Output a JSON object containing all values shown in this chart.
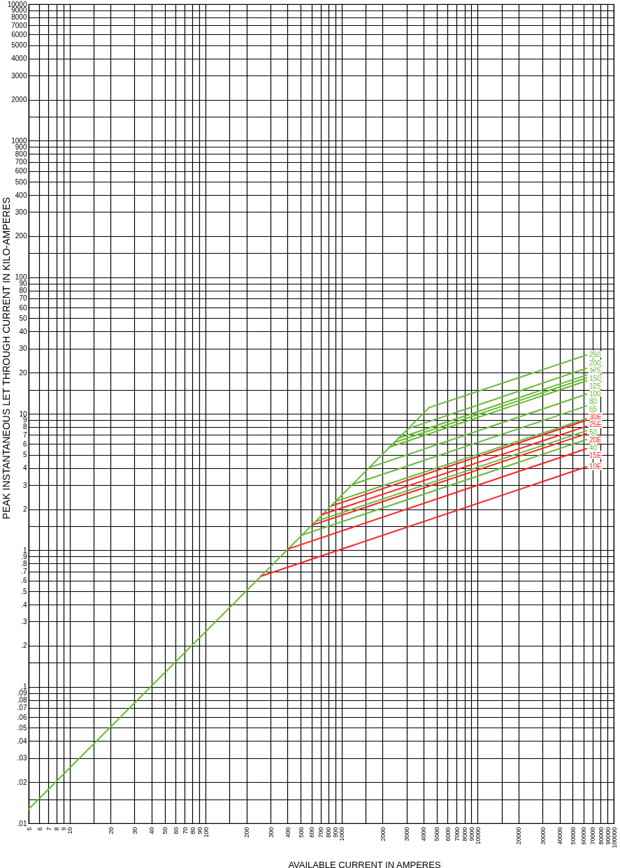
{
  "chart_data": {
    "type": "line",
    "xlabel": "AVAILABLE CURRENT IN AMPERES",
    "ylabel": "PEAK INSTANTANEOUS LET THROUGH CURRENT IN KILO-AMPERES",
    "log": "xy",
    "grid": true,
    "xlim": [
      5,
      100000
    ],
    "ylim": [
      0.01,
      10000
    ],
    "xticks": [
      5,
      6,
      7,
      8,
      9,
      10,
      {
        "value": 15,
        "label": null
      },
      20,
      30,
      40,
      50,
      60,
      70,
      80,
      90,
      100,
      {
        "value": 150,
        "label": null
      },
      200,
      300,
      400,
      500,
      600,
      700,
      800,
      900,
      1000,
      {
        "value": 1500,
        "label": null
      },
      2000,
      3000,
      4000,
      5000,
      6000,
      7000,
      8000,
      9000,
      10000,
      {
        "value": 15000,
        "label": null
      },
      20000,
      30000,
      40000,
      50000,
      60000,
      70000,
      80000,
      90000,
      100000
    ],
    "yticks": [
      {
        "value": 0.01,
        "label": ".01"
      },
      {
        "value": 0.015,
        "label": null
      },
      {
        "value": 0.02,
        "label": ".02"
      },
      {
        "value": 0.03,
        "label": ".03"
      },
      {
        "value": 0.04,
        "label": ".04"
      },
      {
        "value": 0.05,
        "label": ".05"
      },
      {
        "value": 0.06,
        "label": ".06"
      },
      {
        "value": 0.07,
        "label": ".07"
      },
      {
        "value": 0.08,
        "label": ".08"
      },
      {
        "value": 0.09,
        "label": ".09"
      },
      {
        "value": 0.1,
        "label": ".1"
      },
      {
        "value": 0.15,
        "label": null
      },
      {
        "value": 0.2,
        "label": ".2"
      },
      {
        "value": 0.3,
        "label": ".3"
      },
      {
        "value": 0.4,
        "label": ".4"
      },
      {
        "value": 0.5,
        "label": ".5"
      },
      {
        "value": 0.6,
        "label": ".6"
      },
      {
        "value": 0.7,
        "label": ".7"
      },
      {
        "value": 0.8,
        "label": ".8"
      },
      {
        "value": 0.9,
        "label": ".9"
      },
      1,
      {
        "value": 1.5,
        "label": null
      },
      2,
      3,
      4,
      5,
      6,
      7,
      8,
      9,
      10,
      {
        "value": 15,
        "label": null
      },
      20,
      30,
      40,
      50,
      60,
      70,
      80,
      90,
      100,
      {
        "value": 150,
        "label": null
      },
      200,
      300,
      400,
      500,
      600,
      700,
      800,
      900,
      1000,
      {
        "value": 1500,
        "label": null
      },
      2000,
      3000,
      4000,
      5000,
      6000,
      7000,
      8000,
      9000,
      10000
    ],
    "series": [
      {
        "color": "#66bb33",
        "x": [
          5,
          4400
        ],
        "values": [
          0.0127,
          11.1
        ]
      },
      {
        "name": "250",
        "color": "#66bb33",
        "x": [
          4400,
          63000
        ],
        "values": [
          11.1,
          26.9
        ]
      },
      {
        "name": "200",
        "color": "#66bb33",
        "x": [
          3100,
          63000
        ],
        "values": [
          7.8,
          21.5
        ]
      },
      {
        "name": "175",
        "color": "#66bb33",
        "x": [
          2600,
          63000
        ],
        "values": [
          6.6,
          19.2
        ]
      },
      {
        "name": "150",
        "color": "#66bb33",
        "x": [
          2430,
          63000
        ],
        "values": [
          6.15,
          18.3
        ]
      },
      {
        "name": "125",
        "color": "#66bb33",
        "x": [
          2250,
          63000
        ],
        "values": [
          5.7,
          17.4
        ]
      },
      {
        "name": "100",
        "color": "#66bb33",
        "x": [
          1620,
          63000
        ],
        "values": [
          4.05,
          13.9
        ]
      },
      {
        "name": "80",
        "color": "#66bb33",
        "x": [
          1220,
          63000
        ],
        "values": [
          3.05,
          11.4
        ]
      },
      {
        "name": "65",
        "color": "#66bb33",
        "x": [
          900,
          63000
        ],
        "values": [
          2.28,
          9.2
        ]
      },
      {
        "name": "50",
        "color": "#66bb33",
        "x": [
          650,
          63000
        ],
        "values": [
          1.63,
          7.5
        ]
      },
      {
        "name": "40",
        "color": "#66bb33",
        "x": [
          509,
          63000
        ],
        "values": [
          1.29,
          6.47
        ]
      },
      {
        "name": "30E",
        "color": "#ff2222",
        "x": [
          850,
          63000
        ],
        "values": [
          2.12,
          8.97
        ]
      },
      {
        "name": "25E",
        "color": "#ff2222",
        "x": [
          713,
          63000
        ],
        "values": [
          1.82,
          8.1
        ]
      },
      {
        "name": "20E",
        "color": "#ff2222",
        "x": [
          608,
          63000
        ],
        "values": [
          1.53,
          7.14
        ]
      },
      {
        "name": "15E",
        "color": "#ff2222",
        "x": [
          402,
          63000
        ],
        "values": [
          1.02,
          5.55
        ]
      },
      {
        "name": "10E",
        "color": "#ff2222",
        "x": [
          255,
          63000
        ],
        "values": [
          0.645,
          4.08
        ]
      }
    ]
  }
}
